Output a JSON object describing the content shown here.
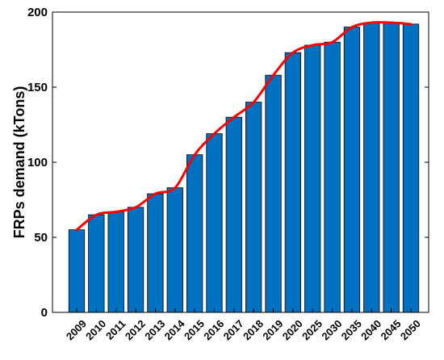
{
  "chart_data": {
    "type": "bar",
    "title": "",
    "xlabel": "",
    "ylabel": "FRPs demand (kTons)",
    "ylim": [
      0,
      200
    ],
    "yticks": [
      0,
      50,
      100,
      150,
      200
    ],
    "categories": [
      "2009",
      "2010",
      "2011",
      "2012",
      "2013",
      "2014",
      "2015",
      "2016",
      "2017",
      "2018",
      "2019",
      "2020",
      "2025",
      "2030",
      "2035",
      "2040",
      "2045",
      "2050"
    ],
    "series": [
      {
        "type": "bar",
        "color": "#0070C0",
        "values": [
          55,
          65,
          67,
          70,
          79,
          83,
          105,
          119,
          130,
          140,
          158,
          173,
          178,
          180,
          190,
          193,
          193,
          192
        ]
      },
      {
        "type": "line",
        "color": "#FF0000",
        "values": [
          55,
          65,
          67,
          70,
          79,
          83,
          105,
          119,
          130,
          140,
          158,
          173,
          178,
          180,
          190,
          193,
          193,
          192
        ]
      }
    ],
    "grid": false,
    "legend": "none"
  }
}
